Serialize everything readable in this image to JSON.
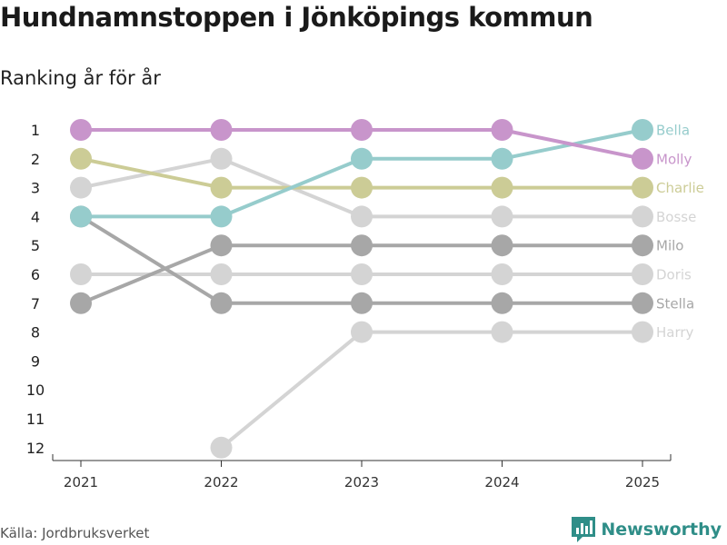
{
  "title": "Hundnamnstoppen i Jönköpings kommun",
  "subtitle": "Ranking år för år",
  "source": "Källa: Jordbruksverket",
  "brand": "Newsworthy",
  "brand_icon": "newsworthy-logo-icon",
  "colors": {
    "brand": "#2f8e88",
    "bella": "#96cccc",
    "molly": "#c895cb",
    "charlie": "#cccc96",
    "bosse": "#d4d4d4",
    "milo": "#a7a7a7",
    "doris": "#d4d4d4",
    "stella": "#a7a7a7",
    "harry": "#d4d4d4",
    "axis": "#333333"
  },
  "chart_data": {
    "type": "line",
    "title": "Hundnamnstoppen i Jönköpings kommun",
    "subtitle": "Ranking år för år",
    "x": [
      "2021",
      "2022",
      "2023",
      "2024",
      "2025"
    ],
    "y_ticks": [
      "1",
      "2",
      "3",
      "4",
      "5",
      "6",
      "7",
      "8",
      "9",
      "10",
      "11",
      "12"
    ],
    "ylim": [
      1,
      12
    ],
    "y_inverted": true,
    "series": [
      {
        "name": "Bosse",
        "color": "#d4d4d4",
        "values": [
          3,
          2,
          4,
          4,
          4
        ]
      },
      {
        "name": "Doris",
        "color": "#d4d4d4",
        "values": [
          6,
          6,
          6,
          6,
          6
        ]
      },
      {
        "name": "Harry",
        "color": "#d4d4d4",
        "values": [
          null,
          12,
          8,
          8,
          8
        ]
      },
      {
        "name": "Milo",
        "color": "#a7a7a7",
        "values": [
          7,
          5,
          5,
          5,
          5
        ]
      },
      {
        "name": "Stella",
        "color": "#a7a7a7",
        "values": [
          4,
          7,
          7,
          7,
          7
        ]
      },
      {
        "name": "Charlie",
        "color": "#cccc96",
        "values": [
          2,
          3,
          3,
          3,
          3
        ]
      },
      {
        "name": "Bella",
        "color": "#96cccc",
        "values": [
          4,
          4,
          2,
          2,
          1
        ]
      },
      {
        "name": "Molly",
        "color": "#c895cb",
        "values": [
          1,
          1,
          1,
          1,
          2
        ]
      }
    ]
  }
}
